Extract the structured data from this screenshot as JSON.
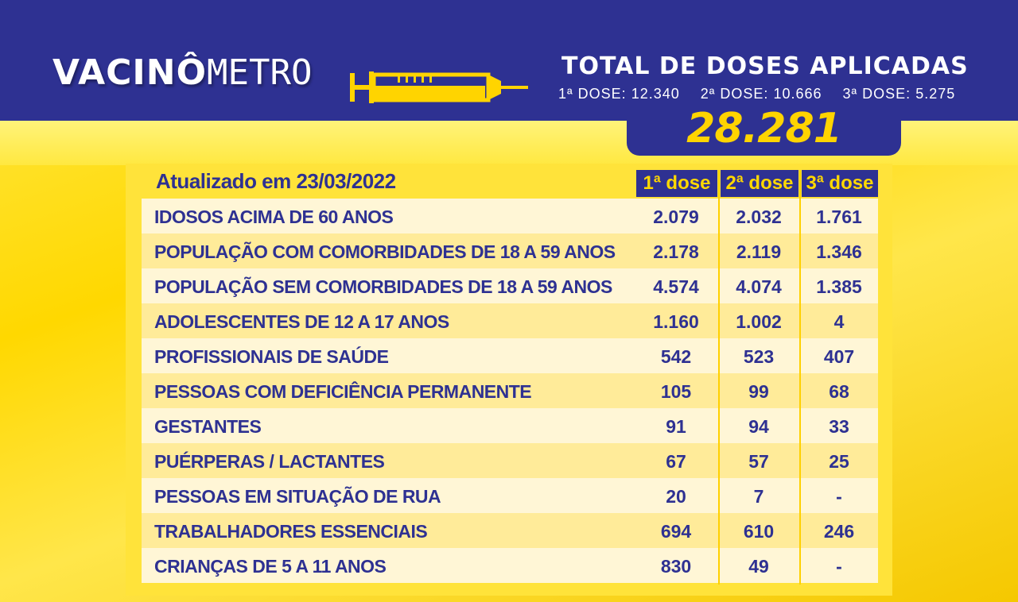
{
  "brand": {
    "logo_part1": "VACINÔ",
    "logo_part2": "METRO"
  },
  "total": {
    "title": "TOTAL DE DOSES APLICADAS",
    "dose1": "1ª DOSE: 12.340",
    "dose2": "2ª DOSE: 10.666",
    "dose3": "3ª DOSE: 5.275",
    "total_value": "28.281"
  },
  "colors": {
    "navy": "#2e3192",
    "yellow": "#ffd800"
  },
  "table": {
    "updated": "Atualizado em 23/03/2022",
    "headers": [
      "1ª dose",
      "2ª dose",
      "3ª dose"
    ],
    "rows": [
      {
        "label": "IDOSOS ACIMA DE 60 ANOS",
        "d1": "2.079",
        "d2": "2.032",
        "d3": "1.761"
      },
      {
        "label": "POPULAÇÃO COM COMORBIDADES DE 18 A 59 ANOS",
        "d1": "2.178",
        "d2": "2.119",
        "d3": "1.346"
      },
      {
        "label": "POPULAÇÃO SEM COMORBIDADES DE 18 A 59 ANOS",
        "d1": "4.574",
        "d2": "4.074",
        "d3": "1.385"
      },
      {
        "label": "ADOLESCENTES DE 12 A 17 ANOS",
        "d1": "1.160",
        "d2": "1.002",
        "d3": "4"
      },
      {
        "label": "PROFISSIONAIS DE SAÚDE",
        "d1": "542",
        "d2": "523",
        "d3": "407"
      },
      {
        "label": "PESSOAS COM DEFICIÊNCIA PERMANENTE",
        "d1": "105",
        "d2": "99",
        "d3": "68"
      },
      {
        "label": "GESTANTES",
        "d1": "91",
        "d2": "94",
        "d3": "33"
      },
      {
        "label": "PUÉRPERAS / LACTANTES",
        "d1": "67",
        "d2": "57",
        "d3": "25"
      },
      {
        "label": "PESSOAS EM SITUAÇÃO DE RUA",
        "d1": "20",
        "d2": "7",
        "d3": "-"
      },
      {
        "label": "TRABALHADORES ESSENCIAIS",
        "d1": "694",
        "d2": "610",
        "d3": "246"
      },
      {
        "label": "CRIANÇAS DE 5 A 11 ANOS",
        "d1": "830",
        "d2": "49",
        "d3": "-"
      }
    ]
  }
}
